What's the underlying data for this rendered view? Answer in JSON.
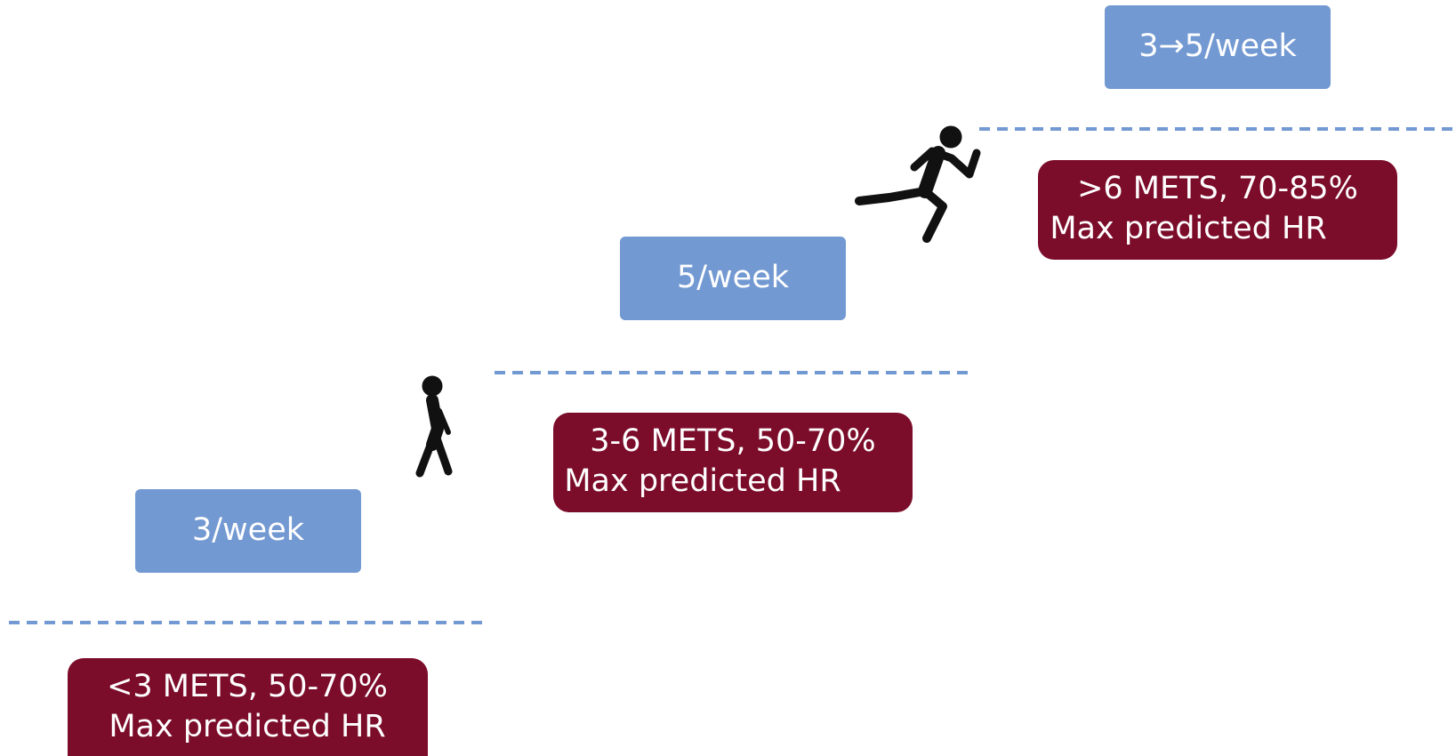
{
  "stages": [
    {
      "frequency": "3/week",
      "intensity": [
        "<3 METS, 50-70%",
        "Max predicted HR"
      ]
    },
    {
      "frequency": "5/week",
      "intensity": [
        "3-6 METS, 50-70%",
        "Max predicted HR"
      ]
    },
    {
      "frequency": "3→5/week",
      "intensity": [
        ">6 METS, 70-85%",
        "Max predicted HR"
      ]
    }
  ]
}
